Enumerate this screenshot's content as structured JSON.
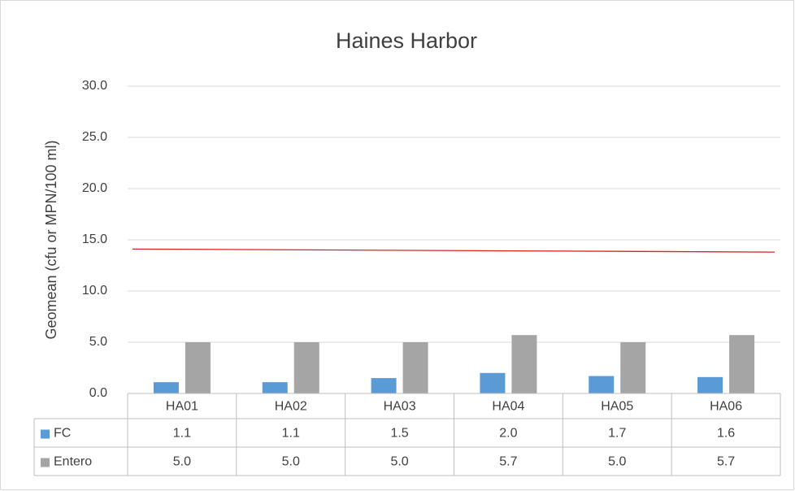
{
  "chart_data": {
    "type": "bar",
    "title": "Haines Harbor",
    "y_label": "Geomean (cfu or MPN/100 ml)",
    "categories": [
      "HA01",
      "HA02",
      "HA03",
      "HA04",
      "HA05",
      "HA06"
    ],
    "series": [
      {
        "name": "FC",
        "color": "#5b9bd5",
        "values": [
          1.1,
          1.1,
          1.5,
          2.0,
          1.7,
          1.6
        ],
        "value_labels": [
          "1.1",
          "1.1",
          "1.5",
          "2.0",
          "1.7",
          "1.6"
        ]
      },
      {
        "name": "Entero",
        "color": "#a5a5a5",
        "values": [
          5.0,
          5.0,
          5.0,
          5.7,
          5.0,
          5.7
        ],
        "value_labels": [
          "5.0",
          "5.0",
          "5.0",
          "5.7",
          "5.0",
          "5.7"
        ]
      }
    ],
    "reference_line": {
      "color": "#e02020",
      "values": [
        14.1,
        13.8
      ]
    },
    "ylim": [
      0,
      30
    ],
    "yticks": [
      {
        "value": 0,
        "label": "0.0"
      },
      {
        "value": 5,
        "label": "5.0"
      },
      {
        "value": 10,
        "label": "10.0"
      },
      {
        "value": 15,
        "label": "15.0"
      },
      {
        "value": 20,
        "label": "20.0"
      },
      {
        "value": 25,
        "label": "25.0"
      },
      {
        "value": 30,
        "label": "30.0"
      }
    ],
    "grid": true
  }
}
